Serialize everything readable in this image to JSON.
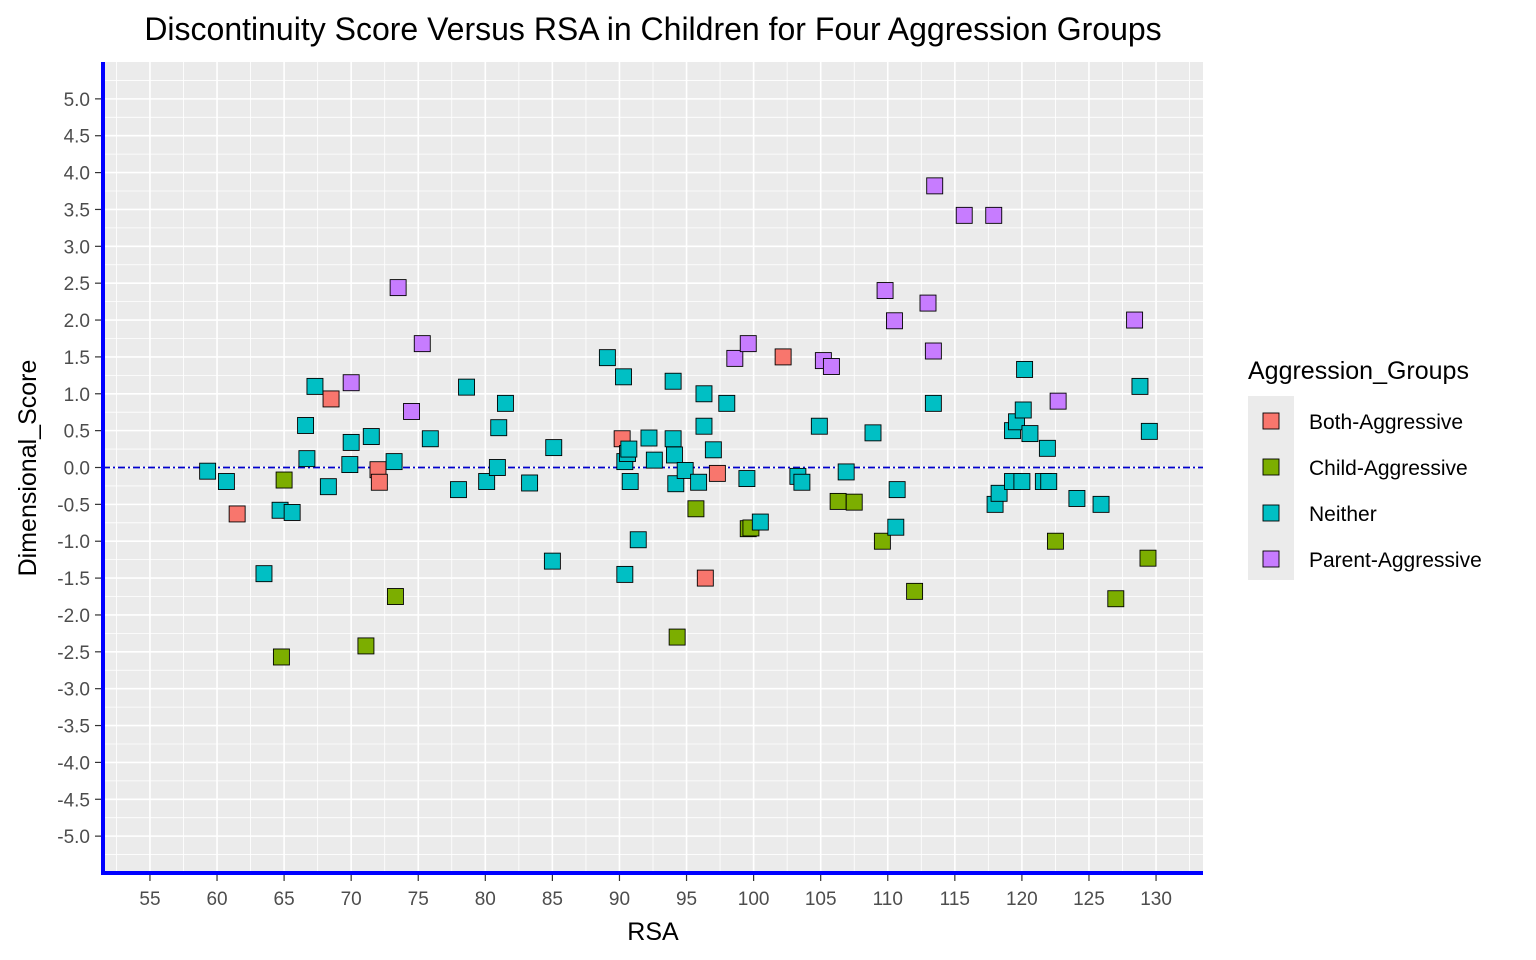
{
  "chart_data": {
    "type": "scatter",
    "title": "Discontinuity Score Versus RSA in Children for Four Aggression Groups",
    "xlabel": "RSA",
    "ylabel": "Dimensional_Score",
    "xlim": [
      51.5,
      133.5
    ],
    "ylim": [
      -5.5,
      5.5
    ],
    "x_ticks": [
      55,
      60,
      65,
      70,
      75,
      80,
      85,
      90,
      95,
      100,
      105,
      110,
      115,
      120,
      125,
      130
    ],
    "x_tick_labels": [
      "55",
      "60",
      "65",
      "70",
      "75",
      "80",
      "85",
      "90",
      "95",
      "100",
      "105",
      "110",
      "115",
      "120",
      "125",
      "130"
    ],
    "y_ticks": [
      5.0,
      4.5,
      4.0,
      3.5,
      3.0,
      2.5,
      2.0,
      1.5,
      1.0,
      0.5,
      0.0,
      -0.5,
      -1.0,
      -1.5,
      -2.0,
      -2.5,
      -3.0,
      -3.5,
      -4.0,
      -4.5,
      -5.0
    ],
    "y_tick_labels": [
      "5.0",
      "4.5",
      "4.0",
      "3.5",
      "3.0",
      "2.5",
      "2.0",
      "1.5",
      "1.0",
      "0.5",
      "0.0",
      "-0.5",
      "-1.0",
      "-1.5",
      "-2.0",
      "-2.5",
      "-3.0",
      "-3.5",
      "-4.0",
      "-4.5",
      "-5.0"
    ],
    "grid": true,
    "reference_line": {
      "y": 0,
      "style": "dash-dot",
      "color": "#0000CC"
    },
    "axis_color": "#0000FF",
    "panel_background": "#EBEBEB",
    "legend": {
      "title": "Aggression_Groups",
      "position": "right"
    },
    "series": [
      {
        "name": "Both-Aggressive",
        "color": "#F8766D",
        "points": [
          [
            61.5,
            -0.63
          ],
          [
            68.5,
            0.93
          ],
          [
            72.0,
            -0.03
          ],
          [
            72.1,
            -0.2
          ],
          [
            90.2,
            0.39
          ],
          [
            96.4,
            -1.5
          ],
          [
            97.3,
            -0.08
          ],
          [
            102.2,
            1.5
          ]
        ]
      },
      {
        "name": "Child-Aggressive",
        "color": "#7CAE00",
        "points": [
          [
            64.8,
            -2.57
          ],
          [
            65.0,
            -0.17
          ],
          [
            71.1,
            -2.42
          ],
          [
            73.3,
            -1.75
          ],
          [
            94.3,
            -2.3
          ],
          [
            95.7,
            -0.56
          ],
          [
            99.6,
            -0.83
          ],
          [
            99.8,
            -0.82
          ],
          [
            106.3,
            -0.46
          ],
          [
            107.5,
            -0.47
          ],
          [
            109.6,
            -1.0
          ],
          [
            112.0,
            -1.68
          ],
          [
            122.5,
            -1.0
          ],
          [
            127.0,
            -1.78
          ],
          [
            129.4,
            -1.23
          ]
        ]
      },
      {
        "name": "Neither",
        "color": "#00BFC4",
        "points": [
          [
            59.3,
            -0.05
          ],
          [
            60.7,
            -0.19
          ],
          [
            63.5,
            -1.44
          ],
          [
            64.7,
            -0.58
          ],
          [
            65.6,
            -0.61
          ],
          [
            66.6,
            0.57
          ],
          [
            66.7,
            0.12
          ],
          [
            67.3,
            1.1
          ],
          [
            68.3,
            -0.26
          ],
          [
            69.9,
            0.04
          ],
          [
            70.0,
            0.34
          ],
          [
            71.5,
            0.42
          ],
          [
            73.2,
            0.08
          ],
          [
            75.9,
            0.39
          ],
          [
            78.0,
            -0.3
          ],
          [
            78.6,
            1.09
          ],
          [
            80.1,
            -0.19
          ],
          [
            80.9,
            0.0
          ],
          [
            81.0,
            0.54
          ],
          [
            81.5,
            0.87
          ],
          [
            83.3,
            -0.21
          ],
          [
            85.0,
            -1.27
          ],
          [
            85.1,
            0.27
          ],
          [
            89.1,
            1.49
          ],
          [
            90.3,
            1.23
          ],
          [
            90.4,
            -1.45
          ],
          [
            90.4,
            0.08
          ],
          [
            90.6,
            0.19
          ],
          [
            90.7,
            0.25
          ],
          [
            90.8,
            -0.19
          ],
          [
            91.4,
            -0.98
          ],
          [
            92.2,
            0.4
          ],
          [
            92.6,
            0.1
          ],
          [
            94.0,
            1.17
          ],
          [
            94.0,
            0.39
          ],
          [
            94.1,
            0.17
          ],
          [
            94.2,
            -0.22
          ],
          [
            94.9,
            -0.04
          ],
          [
            95.9,
            -0.2
          ],
          [
            96.3,
            1.0
          ],
          [
            96.3,
            0.56
          ],
          [
            97.0,
            0.24
          ],
          [
            98.0,
            0.87
          ],
          [
            99.5,
            -0.15
          ],
          [
            100.5,
            -0.74
          ],
          [
            103.3,
            -0.12
          ],
          [
            103.6,
            -0.2
          ],
          [
            104.9,
            0.56
          ],
          [
            106.9,
            -0.06
          ],
          [
            108.9,
            0.47
          ],
          [
            110.6,
            -0.81
          ],
          [
            110.7,
            -0.3
          ],
          [
            113.4,
            0.87
          ],
          [
            118.0,
            -0.5
          ],
          [
            118.3,
            -0.35
          ],
          [
            119.3,
            -0.19
          ],
          [
            119.3,
            0.5
          ],
          [
            119.6,
            0.62
          ],
          [
            120.0,
            -0.19
          ],
          [
            120.1,
            0.78
          ],
          [
            120.2,
            1.33
          ],
          [
            120.6,
            0.46
          ],
          [
            121.6,
            -0.19
          ],
          [
            121.9,
            0.26
          ],
          [
            122.0,
            -0.19
          ],
          [
            124.1,
            -0.42
          ],
          [
            125.9,
            -0.5
          ],
          [
            128.8,
            1.1
          ],
          [
            129.5,
            0.49
          ]
        ]
      },
      {
        "name": "Parent-Aggressive",
        "color": "#C77CFF",
        "points": [
          [
            70.0,
            1.15
          ],
          [
            73.5,
            2.44
          ],
          [
            74.5,
            0.76
          ],
          [
            75.3,
            1.68
          ],
          [
            98.6,
            1.48
          ],
          [
            99.6,
            1.68
          ],
          [
            105.2,
            1.45
          ],
          [
            105.8,
            1.37
          ],
          [
            109.8,
            2.4
          ],
          [
            110.5,
            1.99
          ],
          [
            113.0,
            2.23
          ],
          [
            113.5,
            3.82
          ],
          [
            113.4,
            1.58
          ],
          [
            115.7,
            3.42
          ],
          [
            117.9,
            3.42
          ],
          [
            122.7,
            0.9
          ],
          [
            128.4,
            2.0
          ]
        ]
      }
    ]
  }
}
